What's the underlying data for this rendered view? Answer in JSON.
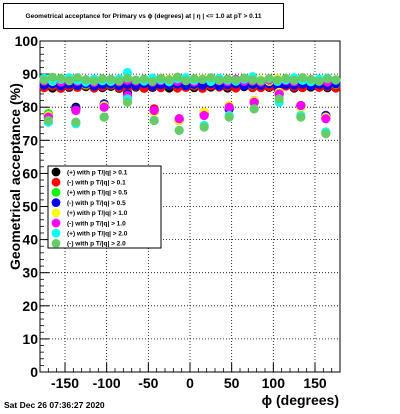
{
  "header": {
    "title": "Geometrical acceptance for Primary vs ϕ (degrees) at | η | <= 1.0 at pT > 0.11"
  },
  "footer": {
    "timestamp": "Sat Dec 26 07:36:27 2020"
  },
  "chart_data": {
    "type": "scatter",
    "title": "Geometrical acceptance for Primary vs ϕ (degrees) at | η | <= 1.0 at pT > 0.11",
    "xlabel": "ϕ (degrees)",
    "ylabel": "Geometrical acceptance (%)",
    "xlim": [
      -180,
      180
    ],
    "ylim": [
      0,
      100
    ],
    "xticks": [
      -150,
      -100,
      -50,
      0,
      50,
      100,
      150
    ],
    "yticks": [
      0,
      10,
      20,
      30,
      40,
      50,
      60,
      70,
      80,
      90,
      100
    ],
    "grid": true,
    "legend_position": "middle-left",
    "x": [
      -175,
      -165,
      -155,
      -145,
      -135,
      -125,
      -115,
      -105,
      -95,
      -85,
      -75,
      -65,
      -55,
      -45,
      -35,
      -25,
      -15,
      -5,
      5,
      15,
      25,
      35,
      45,
      55,
      65,
      75,
      85,
      95,
      105,
      115,
      125,
      135,
      145,
      155,
      165,
      175
    ],
    "series": [
      {
        "name": "(+) with p T/|q| > 0.1",
        "color": "#000000",
        "values": [
          86.5,
          85.8,
          86.7,
          86.0,
          86.4,
          86.2,
          86.6,
          85.9,
          86.3,
          85.7,
          86.8,
          86.1,
          86.4,
          86.0,
          86.5,
          85.8,
          86.2,
          86.6,
          85.9,
          86.3,
          86.1,
          86.7,
          85.8,
          86.4,
          86.2,
          85.9,
          86.5,
          86.0,
          86.3,
          86.6,
          85.8,
          86.4,
          86.1,
          86.7,
          85.9,
          86.3
        ]
      },
      {
        "name": "(-) with p T/|q| > 0.1",
        "color": "#ff0000",
        "values": [
          85.9,
          86.4,
          85.7,
          86.3,
          86.0,
          86.5,
          85.8,
          86.2,
          86.6,
          85.9,
          86.1,
          86.4,
          85.7,
          86.3,
          85.9,
          86.6,
          85.8,
          86.0,
          86.4,
          85.7,
          86.5,
          86.1,
          86.3,
          85.8,
          86.6,
          86.0,
          85.9,
          86.2,
          85.7,
          86.4,
          86.1,
          85.9,
          86.5,
          86.0,
          86.3,
          85.8
        ]
      },
      {
        "name": "(+) with p T/|q| > 0.5",
        "color": "#00ff00",
        "values": [
          87.2,
          86.9,
          87.4,
          87.0,
          87.3,
          86.8,
          87.1,
          87.5,
          86.9,
          87.2,
          87.0,
          86.8,
          87.3,
          87.1,
          86.9,
          87.4,
          87.0,
          87.2,
          86.8,
          87.3,
          87.1,
          86.9,
          87.4,
          87.0,
          87.2,
          86.8,
          87.3,
          87.1,
          86.9,
          87.4,
          87.0,
          87.2,
          86.8,
          87.3,
          87.1,
          86.9
        ]
      },
      {
        "name": "(-) with p T/|q| > 0.5",
        "color": "#0000ff",
        "values": [
          86.7,
          87.0,
          86.5,
          86.9,
          86.6,
          87.1,
          86.4,
          86.8,
          87.0,
          86.5,
          86.9,
          86.6,
          87.1,
          86.4,
          86.8,
          86.7,
          87.0,
          86.5,
          86.9,
          86.6,
          87.1,
          86.4,
          86.8,
          87.0,
          86.5,
          86.9,
          86.6,
          87.1,
          86.4,
          86.8,
          86.7,
          87.0,
          86.5,
          86.9,
          86.6,
          87.1
        ]
      },
      {
        "name": "(+) with p T/|q| > 1.0",
        "color": "#ffff00",
        "values": [
          88.3,
          87.8,
          88.5,
          88.0,
          88.4,
          87.9,
          88.2,
          88.6,
          87.9,
          88.3,
          88.7,
          88.0,
          88.4,
          87.8,
          88.2,
          88.5,
          87.9,
          88.3,
          88.0,
          88.6,
          87.8,
          88.4,
          88.1,
          87.9,
          88.5,
          88.0,
          88.3,
          87.8,
          88.6,
          88.2,
          87.9,
          88.4,
          88.0,
          88.5,
          87.8,
          88.2
        ]
      },
      {
        "name": "(-) with p T/|q| > 1.0",
        "color": "#ff00ff",
        "values": [
          87.9,
          88.2,
          87.6,
          88.1,
          87.8,
          88.3,
          87.5,
          88.0,
          88.4,
          87.7,
          88.1,
          87.9,
          88.3,
          87.6,
          88.0,
          88.2,
          87.8,
          88.1,
          87.6,
          88.3,
          87.9,
          88.0,
          87.7,
          88.4,
          87.8,
          88.1,
          87.6,
          88.2,
          87.9,
          88.0,
          87.7,
          88.3,
          87.8,
          88.1,
          87.6,
          88.2
        ]
      },
      {
        "name": "(+) with p T/|q| > 2.0",
        "color": "#00ffff",
        "values": [
          88.7,
          87.9,
          88.4,
          88.9,
          88.1,
          87.6,
          88.5,
          88.0,
          87.8,
          88.6,
          90.5,
          88.2,
          87.9,
          88.8,
          88.3,
          87.7,
          88.6,
          88.9,
          88.1,
          88.4,
          87.8,
          88.7,
          88.2,
          87.9,
          88.5,
          89.2,
          88.0,
          88.6,
          87.8,
          88.3,
          88.9,
          88.1,
          87.7,
          88.5,
          88.8,
          88.2
        ]
      },
      {
        "name": "(-) with p T/|q| > 2.0",
        "color": "#66cc66",
        "values": [
          88.2,
          89.0,
          88.7,
          88.1,
          88.9,
          88.3,
          87.9,
          88.6,
          88.4,
          88.0,
          88.8,
          88.2,
          88.5,
          87.8,
          88.7,
          88.3,
          89.1,
          88.0,
          88.6,
          88.4,
          88.9,
          88.1,
          88.5,
          88.2,
          88.8,
          88.3,
          88.0,
          88.6,
          88.2,
          88.7,
          88.1,
          88.9,
          88.4,
          87.8,
          88.6,
          88.3
        ]
      }
    ],
    "dips": {
      "x": [
        -170,
        -137,
        -103,
        -75,
        -43,
        -13,
        17,
        47,
        77,
        107,
        133,
        163
      ],
      "series_values": {
        "(+) with p T/|q| > 0.1": [
          78.0,
          80.0,
          80.5,
          84.0,
          79.0,
          76.0,
          78.0,
          79.5,
          81.5,
          84.0,
          80.0,
          77.5
        ],
        "(-) with p T/|q| > 0.1": [
          77.5,
          79.5,
          80.5,
          84.5,
          79.5,
          76.5,
          78.5,
          80.0,
          82.0,
          84.5,
          80.5,
          77.0
        ],
        "(+) with p T/|q| > 0.5": [
          78.0,
          79.5,
          80.0,
          83.0,
          78.5,
          76.5,
          78.0,
          80.0,
          81.5,
          84.0,
          80.0,
          77.0
        ],
        "(-) with p T/|q| > 0.5": [
          77.5,
          79.5,
          81.0,
          84.0,
          79.0,
          76.0,
          78.0,
          79.5,
          82.0,
          84.0,
          80.5,
          77.5
        ],
        "(+) with p T/|q| > 1.0": [
          77.5,
          79.0,
          80.5,
          82.5,
          78.5,
          76.0,
          78.5,
          80.5,
          82.0,
          84.5,
          80.0,
          77.0
        ],
        "(-) with p T/|q| > 1.0": [
          77.0,
          79.0,
          80.0,
          83.5,
          79.0,
          76.5,
          77.5,
          80.0,
          81.5,
          84.0,
          80.5,
          76.5
        ],
        "(+) with p T/|q| > 2.0": [
          75.5,
          75.0,
          77.0,
          82.5,
          76.0,
          73.0,
          74.5,
          77.5,
          79.5,
          81.5,
          77.5,
          72.5
        ],
        "(-) with p T/|q| > 2.0": [
          76.0,
          75.5,
          77.0,
          81.5,
          76.0,
          73.0,
          74.0,
          77.0,
          79.5,
          82.5,
          77.0,
          72.0
        ]
      }
    }
  }
}
